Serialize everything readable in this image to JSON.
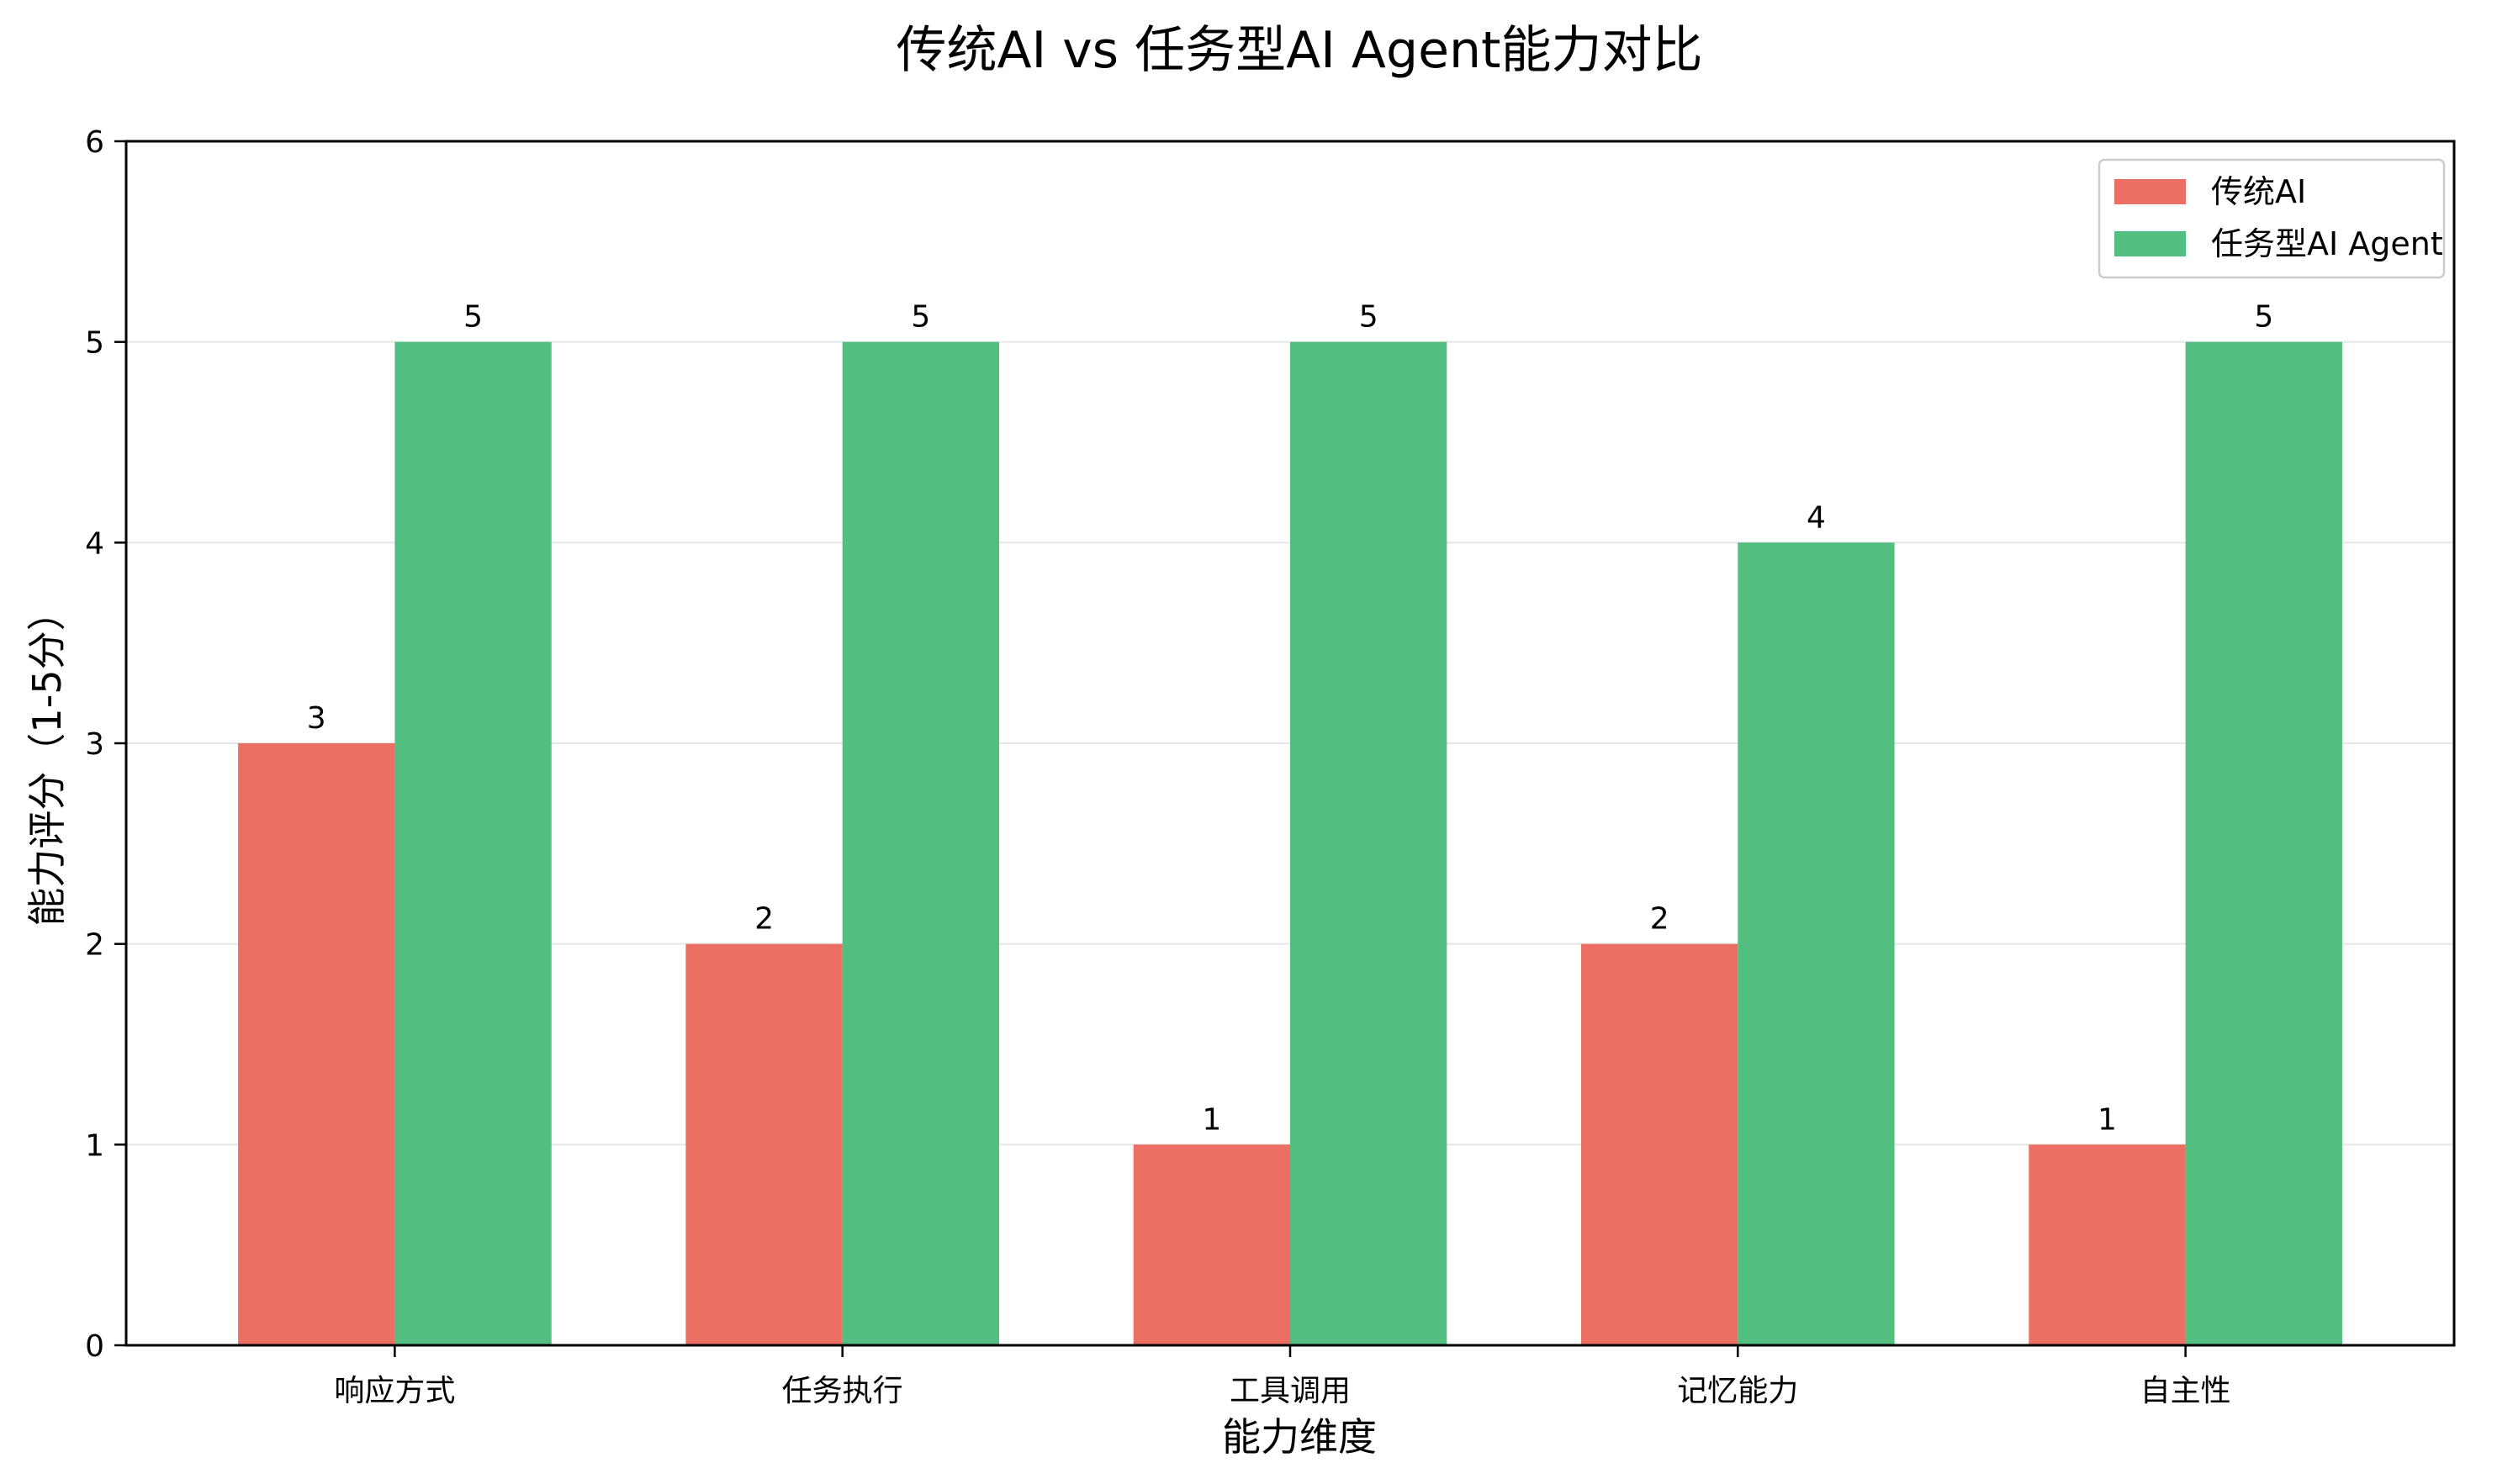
{
  "chart_data": {
    "type": "bar",
    "title": "传统AI vs 任务型AI Agent能力对比",
    "xlabel": "能力维度",
    "ylabel": "能力评分（1-5分）",
    "categories": [
      "响应方式",
      "任务执行",
      "工具调用",
      "记忆能力",
      "自主性"
    ],
    "series": [
      {
        "name": "传统AI",
        "color": "#eb6f63",
        "values": [
          3,
          2,
          1,
          2,
          1
        ]
      },
      {
        "name": "任务型AI Agent",
        "color": "#52be80",
        "values": [
          5,
          5,
          5,
          4,
          5
        ]
      }
    ],
    "ylim": [
      0,
      6
    ],
    "yticks": [
      0,
      1,
      2,
      3,
      4,
      5,
      6
    ],
    "grid": "y-only",
    "legend_position": "top-right"
  }
}
